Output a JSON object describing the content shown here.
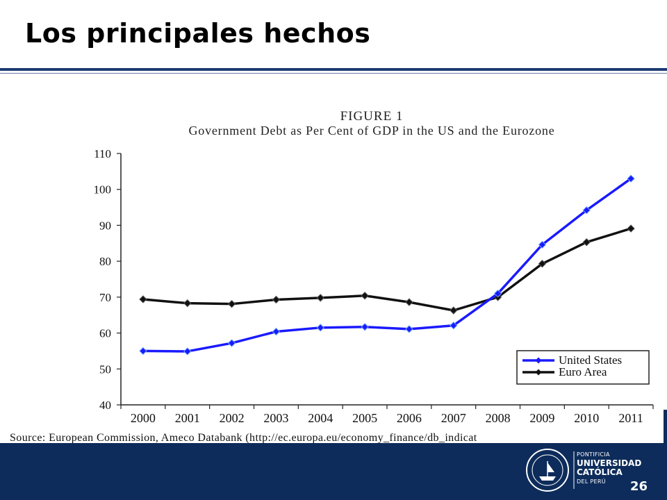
{
  "slide": {
    "title": "Los principales hechos",
    "page_number": "26",
    "source": "Source: European Commission, Ameco Databank (http://ec.europa.eu/economy_finance/db_indicat"
  },
  "logo": {
    "line1": "PONTIFICIA",
    "line2": "UNIVERSIDAD",
    "line3": "CATÓLICA",
    "line4": "DEL PERÚ"
  },
  "colors": {
    "header_rule": "#1f3b73",
    "footer": "#0d2c5b",
    "us_series": "#1a1aff",
    "euro_series": "#111111"
  },
  "chart_data": {
    "type": "line",
    "figure_label": "FIGURE 1",
    "title": "Government Debt as Per Cent of GDP in the US and the Eurozone",
    "xlabel": "",
    "ylabel": "",
    "x": [
      "2000",
      "2001",
      "2002",
      "2003",
      "2004",
      "2005",
      "2006",
      "2007",
      "2008",
      "2009",
      "2010",
      "2011"
    ],
    "ylim": [
      40,
      110
    ],
    "yticks": [
      40,
      50,
      60,
      70,
      80,
      90,
      100,
      110
    ],
    "series": [
      {
        "name": "United States",
        "color": "#1a1aff",
        "marker": "diamond",
        "values": [
          55.0,
          54.9,
          57.2,
          60.4,
          61.5,
          61.7,
          61.1,
          62.1,
          71.0,
          84.6,
          94.2,
          103.0
        ]
      },
      {
        "name": "Euro Area",
        "color": "#111111",
        "marker": "diamond",
        "values": [
          69.4,
          68.3,
          68.1,
          69.3,
          69.8,
          70.4,
          68.6,
          66.3,
          70.0,
          79.3,
          85.3,
          89.1
        ]
      }
    ],
    "grid": false,
    "legend_position": "bottom-right"
  }
}
